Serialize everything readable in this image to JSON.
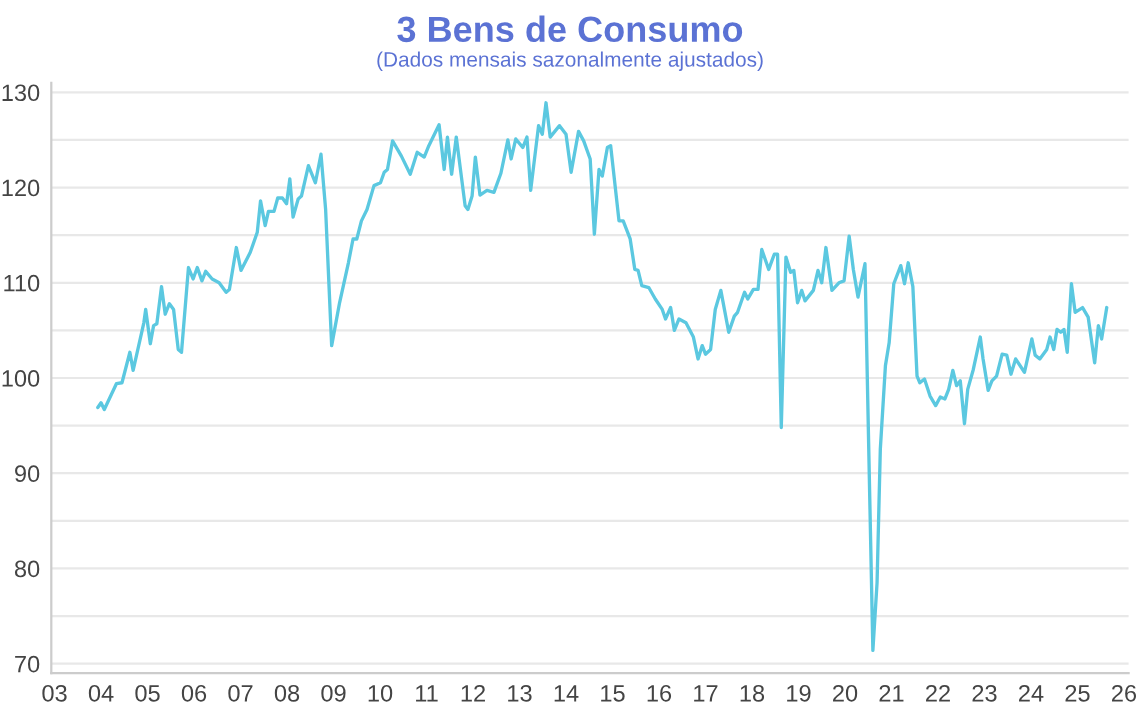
{
  "chart_data": {
    "type": "line",
    "title": "3 Bens de Consumo",
    "subtitle": "(Dados mensais sazonalmente ajustados)",
    "x": [
      2003.93,
      2004.0,
      2004.07,
      2004.33,
      2004.45,
      2004.62,
      2004.69,
      2004.92,
      2004.96,
      2005.06,
      2005.13,
      2005.2,
      2005.3,
      2005.38,
      2005.47,
      2005.56,
      2005.66,
      2005.73,
      2005.88,
      2005.98,
      2006.07,
      2006.17,
      2006.25,
      2006.39,
      2006.54,
      2006.69,
      2006.76,
      2006.91,
      2007.01,
      2007.21,
      2007.36,
      2007.43,
      2007.53,
      2007.6,
      2007.72,
      2007.8,
      2007.9,
      2007.99,
      2008.06,
      2008.13,
      2008.24,
      2008.31,
      2008.46,
      2008.61,
      2008.73,
      2008.83,
      2008.96,
      2009.13,
      2009.32,
      2009.42,
      2009.5,
      2009.6,
      2009.72,
      2009.87,
      2010.01,
      2010.09,
      2010.16,
      2010.27,
      2010.46,
      2010.65,
      2010.8,
      2010.95,
      2011.05,
      2011.27,
      2011.38,
      2011.45,
      2011.54,
      2011.64,
      2011.83,
      2011.89,
      2011.98,
      2012.05,
      2012.15,
      2012.3,
      2012.45,
      2012.6,
      2012.75,
      2012.82,
      2012.92,
      2013.07,
      2013.16,
      2013.24,
      2013.41,
      2013.49,
      2013.57,
      2013.66,
      2013.86,
      2014.0,
      2014.11,
      2014.27,
      2014.38,
      2014.52,
      2014.61,
      2014.71,
      2014.78,
      2014.89,
      2014.96,
      2015.14,
      2015.23,
      2015.38,
      2015.48,
      2015.55,
      2015.63,
      2015.78,
      2015.92,
      2016.07,
      2016.14,
      2016.25,
      2016.33,
      2016.43,
      2016.58,
      2016.74,
      2016.84,
      2016.93,
      2017.0,
      2017.11,
      2017.21,
      2017.33,
      2017.5,
      2017.62,
      2017.69,
      2017.84,
      2017.91,
      2018.03,
      2018.13,
      2018.21,
      2018.36,
      2018.48,
      2018.55,
      2018.63,
      2018.73,
      2018.83,
      2018.9,
      2018.98,
      2019.07,
      2019.14,
      2019.32,
      2019.42,
      2019.5,
      2019.59,
      2019.72,
      2019.87,
      2019.98,
      2020.09,
      2020.18,
      2020.28,
      2020.43,
      2020.6,
      2020.69,
      2020.76,
      2020.87,
      2020.95,
      2021.05,
      2021.2,
      2021.28,
      2021.36,
      2021.46,
      2021.55,
      2021.61,
      2021.71,
      2021.83,
      2021.95,
      2022.05,
      2022.15,
      2022.23,
      2022.32,
      2022.4,
      2022.48,
      2022.57,
      2022.64,
      2022.76,
      2022.91,
      2022.97,
      2023.08,
      2023.16,
      2023.26,
      2023.38,
      2023.48,
      2023.57,
      2023.67,
      2023.86,
      2024.02,
      2024.09,
      2024.19,
      2024.34,
      2024.41,
      2024.49,
      2024.56,
      2024.64,
      2024.71,
      2024.78,
      2024.87,
      2024.95,
      2025.11,
      2025.23,
      2025.37,
      2025.45,
      2025.52,
      2025.63
    ],
    "series": [
      {
        "color": "#5bc8e0",
        "values": [
          96.9,
          97.4,
          96.7,
          99.4,
          99.5,
          102.7,
          100.8,
          105.8,
          107.2,
          103.6,
          105.5,
          105.7,
          109.6,
          106.7,
          107.8,
          107.2,
          103.0,
          102.7,
          111.6,
          110.4,
          111.6,
          110.2,
          111.2,
          110.4,
          110.0,
          109.0,
          109.3,
          113.7,
          111.3,
          113.2,
          115.3,
          118.6,
          116.0,
          117.5,
          117.5,
          118.9,
          118.9,
          118.3,
          120.9,
          116.9,
          118.8,
          119.1,
          122.3,
          120.5,
          123.5,
          117.7,
          103.4,
          107.9,
          112.1,
          114.6,
          114.6,
          116.5,
          117.7,
          120.2,
          120.5,
          121.6,
          121.9,
          124.9,
          123.3,
          121.4,
          123.7,
          123.2,
          124.4,
          126.6,
          121.9,
          125.3,
          121.4,
          125.3,
          118.1,
          117.7,
          119.1,
          123.2,
          119.2,
          119.7,
          119.5,
          121.5,
          125.0,
          123.0,
          125.1,
          124.2,
          125.3,
          119.7,
          126.5,
          125.6,
          128.9,
          125.3,
          126.5,
          125.6,
          121.6,
          125.9,
          124.9,
          123.0,
          115.1,
          121.9,
          121.2,
          124.2,
          124.4,
          116.5,
          116.5,
          114.6,
          111.4,
          111.3,
          109.7,
          109.5,
          108.3,
          107.2,
          106.2,
          107.4,
          105.0,
          106.2,
          105.8,
          104.3,
          102.0,
          103.4,
          102.5,
          103.0,
          107.2,
          109.2,
          104.8,
          106.5,
          106.9,
          109.0,
          108.3,
          109.3,
          109.3,
          113.5,
          111.4,
          113.0,
          113.0,
          94.8,
          112.7,
          111.1,
          111.3,
          107.9,
          109.2,
          108.1,
          109.2,
          111.3,
          110.0,
          113.7,
          109.2,
          110.0,
          110.2,
          114.9,
          111.4,
          108.5,
          112.0,
          71.4,
          78.5,
          92.5,
          101.3,
          103.7,
          109.9,
          111.8,
          109.9,
          112.1,
          109.6,
          100.2,
          99.5,
          99.9,
          98.1,
          97.1,
          98.0,
          97.8,
          98.8,
          100.8,
          99.2,
          99.7,
          95.2,
          98.8,
          100.9,
          104.3,
          102.0,
          98.7,
          99.7,
          100.2,
          102.5,
          102.4,
          100.4,
          102.0,
          100.6,
          104.1,
          102.4,
          102.0,
          103.0,
          104.3,
          103.0,
          105.1,
          104.8,
          105.1,
          102.7,
          109.9,
          106.9,
          107.4,
          106.4,
          101.6,
          105.5,
          104.1,
          107.4
        ]
      }
    ],
    "xlim": [
      2002.93,
      2026.1
    ],
    "xticks": [
      {
        "value": 2003,
        "label": "03"
      },
      {
        "value": 2004,
        "label": "04"
      },
      {
        "value": 2005,
        "label": "05"
      },
      {
        "value": 2006,
        "label": "06"
      },
      {
        "value": 2007,
        "label": "07"
      },
      {
        "value": 2008,
        "label": "08"
      },
      {
        "value": 2009,
        "label": "09"
      },
      {
        "value": 2010,
        "label": "10"
      },
      {
        "value": 2011,
        "label": "11"
      },
      {
        "value": 2012,
        "label": "12"
      },
      {
        "value": 2013,
        "label": "13"
      },
      {
        "value": 2014,
        "label": "14"
      },
      {
        "value": 2015,
        "label": "15"
      },
      {
        "value": 2016,
        "label": "16"
      },
      {
        "value": 2017,
        "label": "17"
      },
      {
        "value": 2018,
        "label": "18"
      },
      {
        "value": 2019,
        "label": "19"
      },
      {
        "value": 2020,
        "label": "20"
      },
      {
        "value": 2021,
        "label": "21"
      },
      {
        "value": 2022,
        "label": "22"
      },
      {
        "value": 2023,
        "label": "23"
      },
      {
        "value": 2024,
        "label": "24"
      },
      {
        "value": 2025,
        "label": "25"
      },
      {
        "value": 2026,
        "label": "26"
      }
    ],
    "ylim": [
      69,
      131
    ],
    "yticks": [
      70,
      {
        "value": 75,
        "label": null
      },
      80,
      {
        "value": 85,
        "label": null
      },
      90,
      {
        "value": 95,
        "label": null
      },
      100,
      {
        "value": 105,
        "label": null
      },
      110,
      {
        "value": 115,
        "label": null
      },
      120,
      {
        "value": 125,
        "label": null
      },
      130
    ],
    "grid": "y",
    "line_style": "solid",
    "marker": "none"
  }
}
